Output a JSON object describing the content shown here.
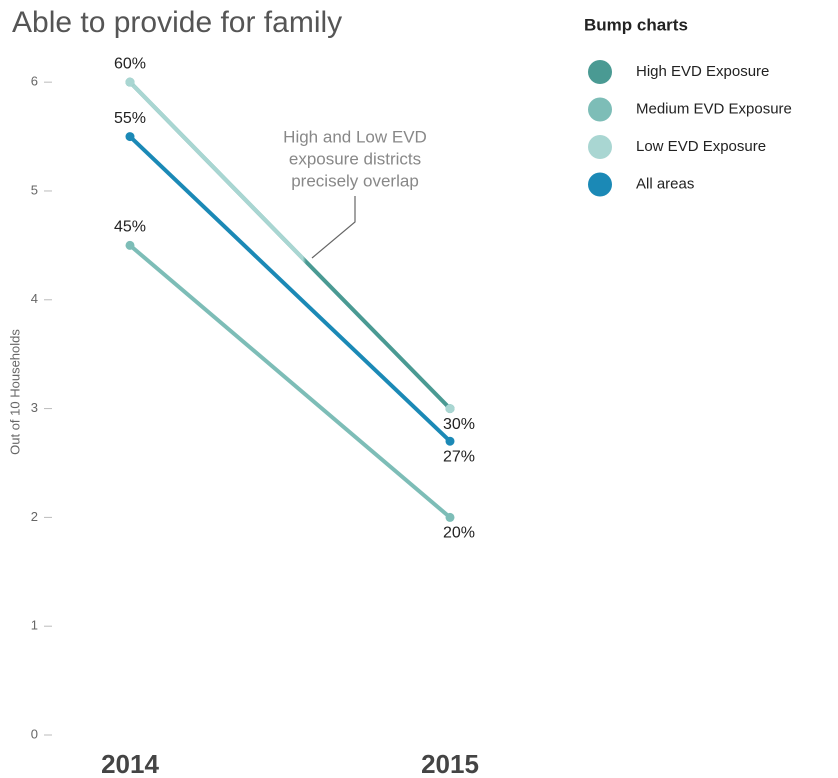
{
  "chart_data": {
    "type": "line",
    "title": "Able to provide for family",
    "y_label": "Out of 10 Households",
    "legend_title": "Bump charts",
    "legend_position": "top-right",
    "annotation": [
      "High and Low EVD",
      "exposure districts",
      "precisely overlap"
    ],
    "categories": [
      "2014",
      "2015"
    ],
    "series": [
      {
        "name": "High EVD Exposure",
        "color": "#4a9a93",
        "values": [
          6,
          3
        ],
        "value_labels": [
          "60%",
          "30%"
        ]
      },
      {
        "name": "Medium EVD Exposure",
        "color": "#7dbdb7",
        "values": [
          4.5,
          2
        ],
        "value_labels": [
          "45%",
          "20%"
        ]
      },
      {
        "name": "Low EVD Exposure",
        "color": "#a9d6d2",
        "values": [
          6,
          3
        ]
      },
      {
        "name": "All areas",
        "color": "#1b89b6",
        "values": [
          5.5,
          2.7
        ],
        "value_labels": [
          "55%",
          "27%"
        ]
      }
    ],
    "ylim": [
      0,
      6.2
    ],
    "yticks": [
      0,
      1,
      2,
      3,
      4,
      5,
      6
    ],
    "grid": false
  }
}
